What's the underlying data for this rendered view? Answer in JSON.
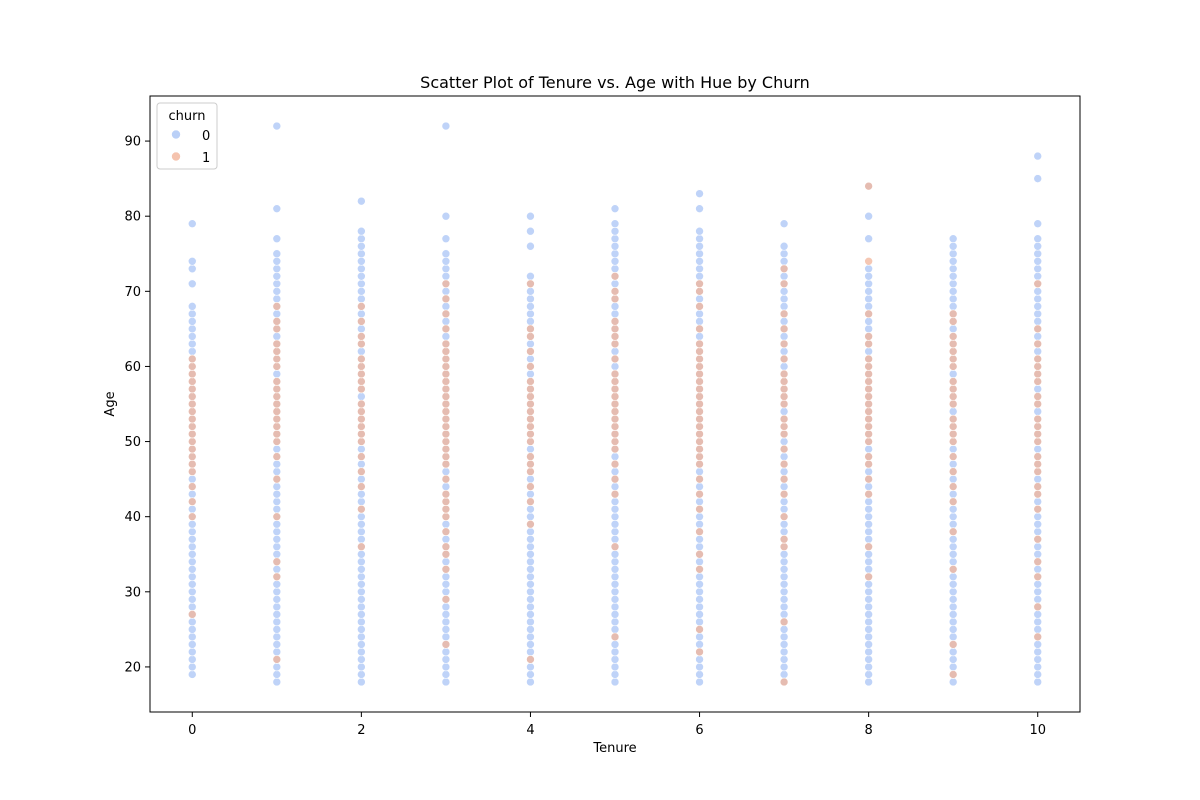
{
  "chart_data": {
    "type": "scatter",
    "title": "Scatter Plot of Tenure vs. Age with Hue by Churn",
    "xlabel": "Tenure",
    "ylabel": "Age",
    "xlim": [
      -0.5,
      10.5
    ],
    "ylim": [
      14,
      96
    ],
    "xticks": [
      0,
      2,
      4,
      6,
      8,
      10
    ],
    "yticks": [
      20,
      30,
      40,
      50,
      60,
      70,
      80,
      90
    ],
    "legend": {
      "title": "churn",
      "placement": "top-left"
    },
    "grid": false,
    "colors": {
      "0": "#a9c4f5",
      "1": "#f2b49a"
    },
    "series": [
      {
        "name": "0",
        "points": [
          {
            "x": 0,
            "y_range": [
              19,
              68
            ],
            "extra": [
              71,
              73,
              74,
              79
            ]
          },
          {
            "x": 1,
            "y_range": [
              18,
              75
            ],
            "extra": [
              77,
              81,
              92
            ]
          },
          {
            "x": 2,
            "y_range": [
              18,
              78
            ],
            "extra": [
              82
            ]
          },
          {
            "x": 3,
            "y_range": [
              18,
              75
            ],
            "extra": [
              77,
              80,
              92
            ]
          },
          {
            "x": 4,
            "y_range": [
              18,
              72
            ],
            "extra": [
              76,
              78,
              80
            ]
          },
          {
            "x": 5,
            "y_range": [
              18,
              79
            ],
            "extra": [
              81
            ]
          },
          {
            "x": 6,
            "y_range": [
              18,
              78
            ],
            "extra": [
              81,
              83
            ]
          },
          {
            "x": 7,
            "y_range": [
              18,
              76
            ],
            "extra": [
              79
            ]
          },
          {
            "x": 8,
            "y_range": [
              18,
              73
            ],
            "extra": [
              77,
              80,
              84
            ]
          },
          {
            "x": 9,
            "y_range": [
              18,
              77
            ],
            "extra": []
          },
          {
            "x": 10,
            "y_range": [
              18,
              77
            ],
            "extra": [
              79,
              85,
              88
            ]
          }
        ]
      },
      {
        "name": "1",
        "points": [
          {
            "x": 0,
            "ages": [
              27,
              40,
              42,
              44,
              46,
              47,
              48,
              49,
              50,
              51,
              52,
              53,
              54,
              55,
              56,
              57,
              58,
              59,
              60,
              61
            ]
          },
          {
            "x": 1,
            "ages": [
              21,
              32,
              34,
              40,
              45,
              48,
              50,
              51,
              52,
              53,
              54,
              55,
              56,
              57,
              58,
              60,
              61,
              62,
              63,
              65,
              66,
              68
            ]
          },
          {
            "x": 2,
            "ages": [
              36,
              41,
              44,
              46,
              48,
              50,
              51,
              52,
              53,
              54,
              55,
              57,
              58,
              59,
              60,
              61,
              63,
              64,
              66,
              68
            ]
          },
          {
            "x": 3,
            "ages": [
              23,
              29,
              33,
              35,
              36,
              38,
              40,
              41,
              42,
              43,
              45,
              47,
              48,
              49,
              50,
              51,
              52,
              53,
              54,
              55,
              56,
              57,
              58,
              59,
              60,
              61,
              62,
              63,
              65,
              67,
              69,
              71
            ]
          },
          {
            "x": 4,
            "ages": [
              21,
              39,
              42,
              44,
              46,
              47,
              48,
              50,
              51,
              52,
              53,
              54,
              55,
              56,
              57,
              58,
              60,
              62,
              64,
              65,
              71
            ]
          },
          {
            "x": 5,
            "ages": [
              24,
              36,
              43,
              45,
              47,
              49,
              50,
              51,
              52,
              53,
              54,
              55,
              56,
              57,
              58,
              59,
              61,
              63,
              64,
              65,
              66,
              69,
              70,
              72
            ]
          },
          {
            "x": 6,
            "ages": [
              22,
              25,
              33,
              35,
              38,
              41,
              43,
              45,
              47,
              48,
              49,
              50,
              51,
              52,
              53,
              54,
              55,
              56,
              57,
              58,
              59,
              60,
              61,
              62,
              63,
              65,
              68,
              70,
              71
            ]
          },
          {
            "x": 7,
            "ages": [
              18,
              26,
              36,
              37,
              40,
              43,
              45,
              47,
              49,
              51,
              52,
              53,
              55,
              56,
              57,
              58,
              59,
              61,
              63,
              65,
              67,
              71,
              73
            ]
          },
          {
            "x": 8,
            "ages": [
              32,
              36,
              43,
              45,
              47,
              48,
              50,
              51,
              52,
              53,
              54,
              55,
              56,
              57,
              58,
              59,
              60,
              61,
              63,
              64,
              67,
              74,
              84
            ]
          },
          {
            "x": 9,
            "ages": [
              19,
              23,
              33,
              38,
              42,
              44,
              46,
              48,
              50,
              51,
              52,
              53,
              55,
              56,
              57,
              58,
              60,
              61,
              62,
              63,
              64,
              66,
              67
            ]
          },
          {
            "x": 10,
            "ages": [
              24,
              28,
              32,
              34,
              37,
              41,
              43,
              44,
              46,
              47,
              48,
              50,
              51,
              52,
              53,
              55,
              56,
              58,
              59,
              60,
              61,
              63,
              65,
              71
            ]
          }
        ]
      }
    ]
  }
}
